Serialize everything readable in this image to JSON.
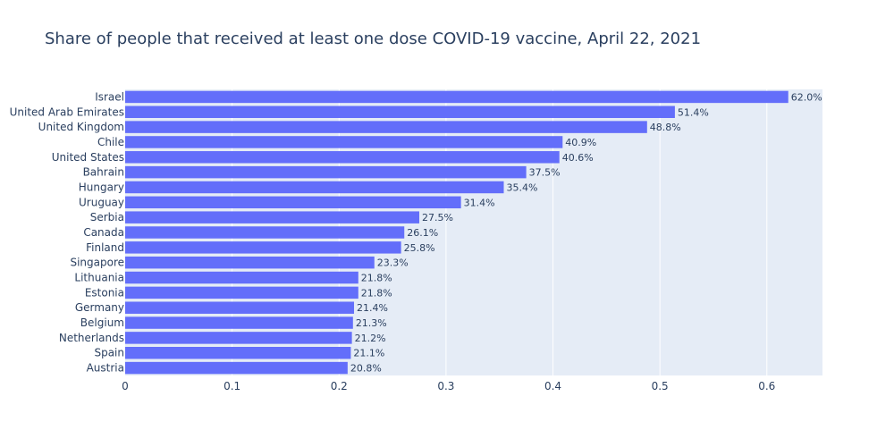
{
  "chart_data": {
    "type": "bar",
    "orientation": "horizontal",
    "title": "Share of people that received at least one dose COVID-19 vaccine, April 22, 2021",
    "xlabel": "",
    "ylabel": "",
    "xlim": [
      0,
      0.652
    ],
    "x_ticks": [
      0,
      0.1,
      0.2,
      0.3,
      0.4,
      0.5,
      0.6
    ],
    "x_tick_labels": [
      "0",
      "0.1",
      "0.2",
      "0.3",
      "0.4",
      "0.5",
      "0.6"
    ],
    "grid": true,
    "bar_color": "#636efa",
    "plot_background": "#e5ecf6",
    "categories": [
      "Israel",
      "United Arab Emirates",
      "United Kingdom",
      "Chile",
      "United States",
      "Bahrain",
      "Hungary",
      "Uruguay",
      "Serbia",
      "Canada",
      "Finland",
      "Singapore",
      "Lithuania",
      "Estonia",
      "Germany",
      "Belgium",
      "Netherlands",
      "Spain",
      "Austria"
    ],
    "values": [
      0.62,
      0.514,
      0.488,
      0.409,
      0.406,
      0.375,
      0.354,
      0.314,
      0.275,
      0.261,
      0.258,
      0.233,
      0.218,
      0.218,
      0.214,
      0.213,
      0.212,
      0.211,
      0.208
    ],
    "data_labels": [
      "62.0%",
      "51.4%",
      "48.8%",
      "40.9%",
      "40.6%",
      "37.5%",
      "35.4%",
      "31.4%",
      "27.5%",
      "26.1%",
      "25.8%",
      "23.3%",
      "21.8%",
      "21.8%",
      "21.4%",
      "21.3%",
      "21.2%",
      "21.1%",
      "20.8%"
    ]
  }
}
